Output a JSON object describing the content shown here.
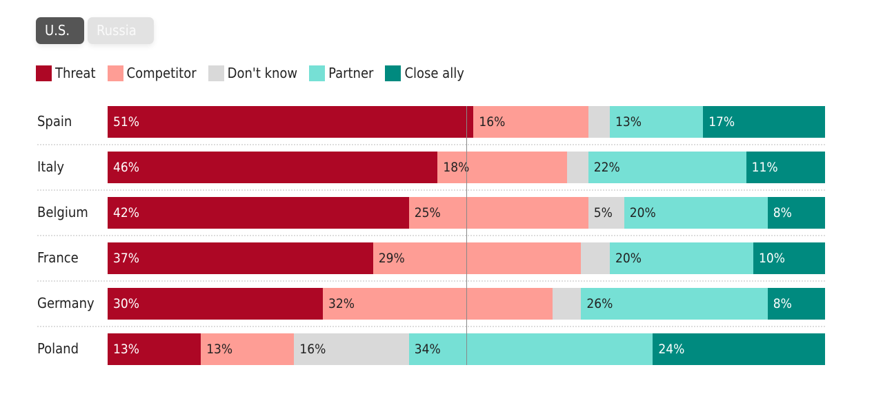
{
  "toggles": [
    {
      "label": "U.S.",
      "active": true
    },
    {
      "label": "Russia",
      "active": false
    }
  ],
  "chart_data": {
    "type": "bar",
    "orientation": "horizontal-stacked-100",
    "categories": [
      "Spain",
      "Italy",
      "Belgium",
      "France",
      "Germany",
      "Poland"
    ],
    "series": [
      {
        "name": "Threat",
        "color": "#ad0725",
        "text_color": "#ffffff",
        "values": [
          51,
          46,
          42,
          37,
          30,
          13
        ],
        "labels": [
          "51%",
          "46%",
          "42%",
          "37%",
          "30%",
          "13%"
        ]
      },
      {
        "name": "Competitor",
        "color": "#fe9d95",
        "text_color": "#222222",
        "values": [
          16,
          18,
          25,
          29,
          32,
          13
        ],
        "labels": [
          "16%",
          "18%",
          "25%",
          "29%",
          "32%",
          "13%"
        ]
      },
      {
        "name": "Don't know",
        "color": "#d9d9d9",
        "text_color": "#222222",
        "values": [
          3,
          3,
          5,
          4,
          4,
          16
        ],
        "labels": [
          "",
          "",
          "5%",
          "",
          "",
          "16%"
        ]
      },
      {
        "name": "Partner",
        "color": "#76e0d5",
        "text_color": "#222222",
        "values": [
          13,
          22,
          20,
          20,
          26,
          34
        ],
        "labels": [
          "13%",
          "22%",
          "20%",
          "20%",
          "26%",
          "34%"
        ]
      },
      {
        "name": "Close ally",
        "color": "#008a7f",
        "text_color": "#ffffff",
        "values": [
          17,
          11,
          8,
          10,
          8,
          24
        ],
        "labels": [
          "17%",
          "11%",
          "8%",
          "10%",
          "8%",
          "24%"
        ]
      }
    ],
    "reference_line": 50,
    "xlim": [
      0,
      100
    ],
    "legend": "top-left"
  }
}
